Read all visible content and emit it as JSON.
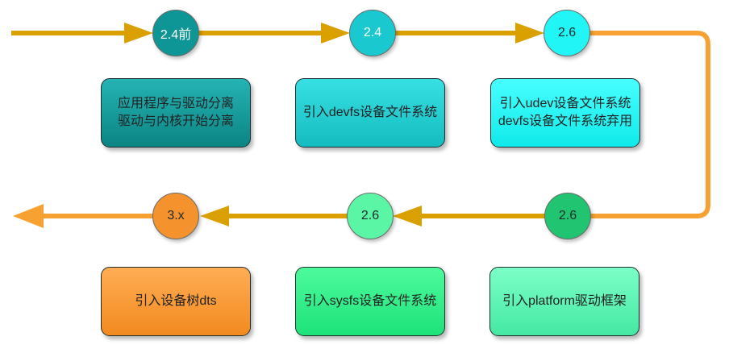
{
  "timeline": {
    "top_row": [
      {
        "version": "2.4前",
        "lines": [
          "应用程序与驱动分离",
          "驱动与内核开始分离"
        ]
      },
      {
        "version": "2.4",
        "lines": [
          "引入devfs设备文件系统"
        ]
      },
      {
        "version": "2.6",
        "lines": [
          "引入udev设备文件系统",
          "devfs设备文件系统弃用"
        ]
      }
    ],
    "bottom_row": [
      {
        "version": "2.6",
        "lines": [
          "引入platform驱动框架"
        ]
      },
      {
        "version": "2.6",
        "lines": [
          "引入sysfs设备文件系统"
        ]
      },
      {
        "version": "3.x",
        "lines": [
          "引入设备树dts"
        ]
      }
    ]
  },
  "colors": {
    "arrow_gold": "#d9a000",
    "arrow_orange": "#f7a133",
    "node_1": "#0e9696",
    "node_2": "#19c9cf",
    "node_3": "#21f5f5",
    "node_4": "#21c470",
    "node_5": "#5bf5a6",
    "node_6": "#f4922d",
    "box_1": "#14989a",
    "box_2": "#1fcfd3",
    "box_3": "#2af7f7",
    "box_4": "#5cf5b8",
    "box_5": "#2ef289",
    "box_6": "#f7962f"
  }
}
